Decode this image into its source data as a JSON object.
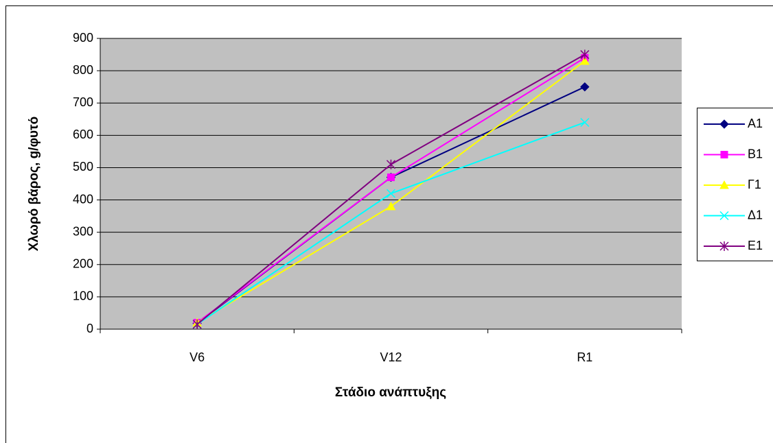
{
  "chart_data": {
    "type": "line",
    "x_label": "Στάδιο ανάπτυξης",
    "y_label": "Χλωρό βάρος, g/φυτό",
    "categories": [
      "V6",
      "V12",
      "R1"
    ],
    "series": [
      {
        "name": "A1",
        "color": "#000080",
        "marker": "diamond",
        "values": [
          18,
          470,
          750
        ]
      },
      {
        "name": "B1",
        "color": "#FF00FF",
        "marker": "square",
        "values": [
          20,
          470,
          840
        ]
      },
      {
        "name": "Γ1",
        "color": "#FFFF00",
        "marker": "triangle",
        "values": [
          20,
          380,
          830
        ]
      },
      {
        "name": "Δ1",
        "color": "#00FFFF",
        "marker": "x",
        "values": [
          15,
          420,
          640
        ]
      },
      {
        "name": "E1",
        "color": "#800080",
        "marker": "star",
        "values": [
          15,
          510,
          850
        ]
      }
    ],
    "ylim": [
      0,
      900
    ],
    "yticks": [
      0,
      100,
      200,
      300,
      400,
      500,
      600,
      700,
      800,
      900
    ],
    "grid": true,
    "legend": "right"
  }
}
